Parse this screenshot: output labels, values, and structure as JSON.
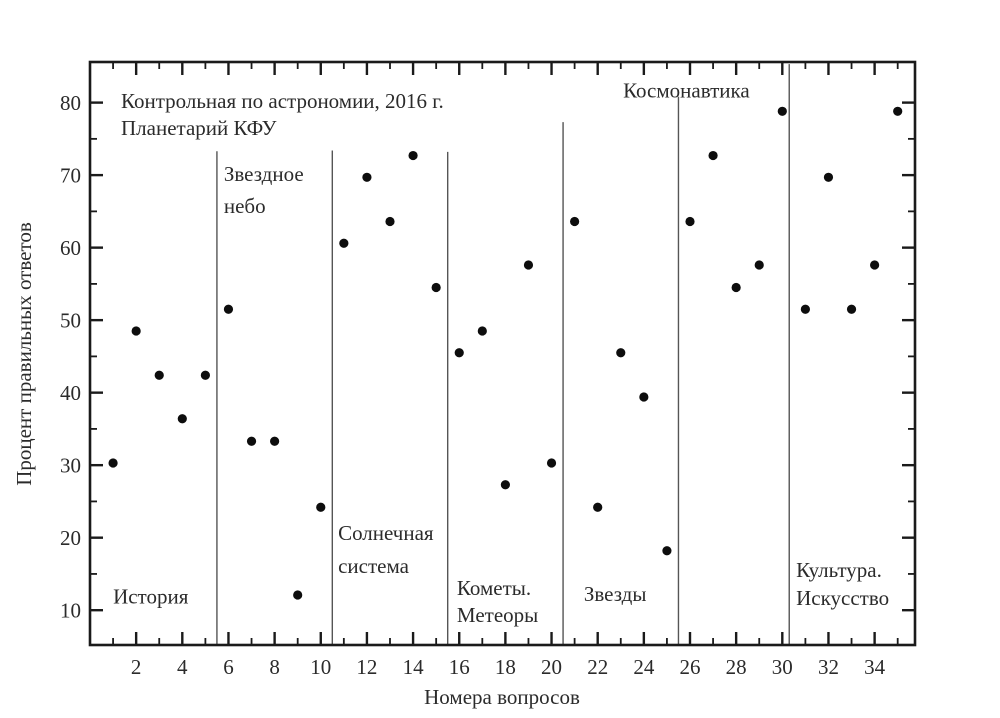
{
  "chart_data": {
    "type": "scatter",
    "title_lines": [
      "Контрольная по астрономии, 2016 г.",
      "Планетарий КФУ"
    ],
    "xlabel": "Номера вопросов",
    "ylabel": "Процент правильных ответов",
    "grid": false,
    "legend": "none",
    "xlim": [
      0,
      35.75
    ],
    "ylim": [
      5.2,
      85.6
    ],
    "x_major_ticks": [
      2,
      4,
      6,
      8,
      10,
      12,
      14,
      16,
      18,
      20,
      22,
      24,
      26,
      28,
      30,
      32,
      34
    ],
    "x_minor_ticks": [
      1,
      3,
      5,
      7,
      9,
      11,
      13,
      15,
      17,
      19,
      21,
      23,
      25,
      27,
      29,
      31,
      33,
      35
    ],
    "y_major_ticks": [
      10,
      20,
      30,
      40,
      50,
      60,
      70,
      80
    ],
    "y_minor_ticks": [
      15,
      25,
      35,
      45,
      55,
      65,
      75
    ],
    "x": [
      1,
      2,
      3,
      4,
      5,
      6,
      7,
      8,
      9,
      10,
      11,
      12,
      13,
      14,
      15,
      16,
      17,
      18,
      19,
      20,
      21,
      22,
      23,
      24,
      25,
      26,
      27,
      28,
      29,
      30,
      31,
      32,
      33,
      34,
      35
    ],
    "y": [
      30.3,
      48.5,
      42.4,
      36.4,
      42.4,
      51.5,
      33.3,
      33.3,
      12.1,
      24.2,
      60.6,
      69.7,
      63.6,
      72.7,
      54.5,
      45.5,
      48.5,
      27.3,
      57.6,
      30.3,
      63.6,
      24.2,
      45.5,
      39.4,
      18.2,
      63.6,
      72.7,
      54.5,
      57.6,
      78.8,
      51.5,
      69.7,
      51.5,
      57.6,
      78.8
    ],
    "section_dividers": [
      {
        "x": 5.5,
        "y_top": 73.3
      },
      {
        "x": 10.5,
        "y_top": 73.4
      },
      {
        "x": 15.5,
        "y_top": 73.2
      },
      {
        "x": 20.5,
        "y_top": 77.3
      },
      {
        "x": 25.5,
        "y_top": 80.8
      },
      {
        "x": 30.3,
        "y_top": 85.3
      }
    ],
    "annotations": [
      {
        "lines": [
          "История"
        ],
        "x": 1.0,
        "y": [
          10.9
        ]
      },
      {
        "lines": [
          "Звездное",
          "небо"
        ],
        "x": 5.8,
        "y": [
          69.2,
          64.8
        ]
      },
      {
        "lines": [
          "Солнечная",
          "система"
        ],
        "x": 10.75,
        "y": [
          19.7,
          15.1
        ]
      },
      {
        "lines": [
          "Кометы.",
          "Метеоры"
        ],
        "x": 15.9,
        "y": [
          12.1,
          8.4
        ]
      },
      {
        "lines": [
          "Звезды"
        ],
        "x": 21.4,
        "y": [
          11.3
        ]
      },
      {
        "lines": [
          "Космонавтика"
        ],
        "x": 23.1,
        "y": [
          80.7
        ]
      },
      {
        "lines": [
          "Культура.",
          "Искусство"
        ],
        "x": 30.6,
        "y": [
          14.6,
          10.7
        ]
      }
    ],
    "colors": {
      "point": "#0d0d0d",
      "axis": "#1a1a1a",
      "divider": "#555555",
      "text": "#2b2b2b",
      "background": "#ffffff"
    }
  }
}
